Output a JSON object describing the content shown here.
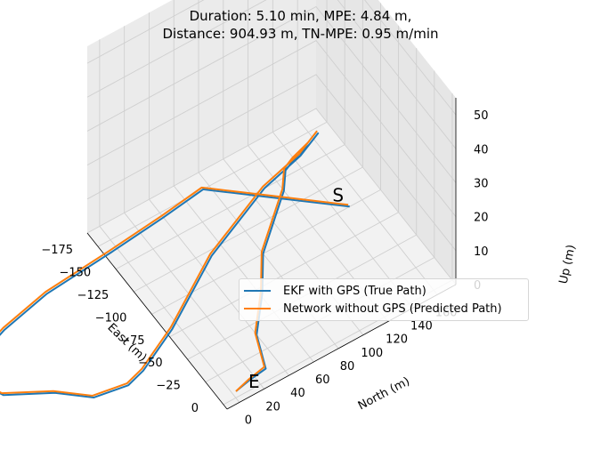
{
  "chart_data": {
    "type": "line",
    "projection": "3d",
    "title": "Duration: 5.10 min, MPE: 4.84 m,",
    "subtitle": "Distance: 904.93 m, TN-MPE: 0.95 m/min",
    "xlabel": "East (m)",
    "ylabel": "North (m)",
    "zlabel": "Up (m)",
    "x_ticks": [
      "−175",
      "−150",
      "−125",
      "−100",
      "−75",
      "−50",
      "−25",
      "0"
    ],
    "y_ticks": [
      "0",
      "20",
      "40",
      "60",
      "80",
      "100",
      "120",
      "140",
      "160"
    ],
    "z_ticks": [
      "0",
      "10",
      "20",
      "30",
      "40",
      "50"
    ],
    "xlim": [
      -190,
      5
    ],
    "ylim": [
      -10,
      175
    ],
    "zlim": [
      0,
      55
    ],
    "grid": true,
    "legend_position": "lower-right",
    "start_label": "S",
    "end_label": "E",
    "series": [
      {
        "name": "EKF with GPS (True Path)",
        "color": "#1f77b4",
        "path": [
          [
            -5,
            3,
            0
          ],
          [
            -8,
            16,
            0
          ],
          [
            -10,
            30,
            0
          ],
          [
            -40,
            40,
            0
          ],
          [
            -70,
            62,
            0
          ],
          [
            -100,
            80,
            0
          ],
          [
            -120,
            100,
            0
          ],
          [
            -140,
            120,
            0
          ],
          [
            -155,
            130,
            0
          ],
          [
            -160,
            140,
            0
          ],
          [
            -165,
            155,
            0
          ],
          [
            -170,
            165,
            0
          ],
          [
            -160,
            145,
            0
          ],
          [
            -150,
            110,
            0
          ],
          [
            -120,
            50,
            0
          ],
          [
            -80,
            -5,
            0
          ],
          [
            -60,
            -40,
            0
          ],
          [
            -55,
            -55,
            0
          ],
          [
            -60,
            -80,
            0
          ],
          [
            -70,
            -90,
            0
          ],
          [
            -80,
            -100,
            0
          ],
          [
            -100,
            -130,
            0
          ],
          [
            -125,
            -140,
            0
          ],
          [
            -140,
            -125,
            0
          ],
          [
            -150,
            -100,
            0
          ],
          [
            -160,
            -60,
            0
          ],
          [
            -165,
            -5,
            0
          ],
          [
            -170,
            40,
            0
          ],
          [
            -175,
            75,
            0
          ],
          [
            -170,
            80,
            0
          ],
          [
            -160,
            90,
            0
          ],
          [
            -140,
            110,
            0
          ],
          [
            -120,
            130,
            0
          ],
          [
            -100,
            150,
            0
          ]
        ]
      },
      {
        "name": "Network without GPS (Predicted Path)",
        "color": "#ff7f0e",
        "path": [
          [
            -5,
            3,
            0
          ],
          [
            -9,
            16,
            0
          ],
          [
            -12,
            30,
            0
          ],
          [
            -42,
            40,
            0
          ],
          [
            -72,
            62,
            0
          ],
          [
            -102,
            80,
            0
          ],
          [
            -122,
            100,
            0
          ],
          [
            -142,
            120,
            0
          ],
          [
            -157,
            130,
            0
          ],
          [
            -162,
            140,
            0
          ],
          [
            -167,
            155,
            0
          ],
          [
            -172,
            165,
            0
          ],
          [
            -162,
            145,
            0
          ],
          [
            -152,
            110,
            0
          ],
          [
            -122,
            50,
            0
          ],
          [
            -82,
            -5,
            0
          ],
          [
            -62,
            -40,
            0
          ],
          [
            -57,
            -55,
            0
          ],
          [
            -62,
            -80,
            0
          ],
          [
            -72,
            -90,
            0
          ],
          [
            -82,
            -100,
            0
          ],
          [
            -102,
            -130,
            0
          ],
          [
            -127,
            -140,
            0
          ],
          [
            -142,
            -125,
            0
          ],
          [
            -152,
            -100,
            0
          ],
          [
            -162,
            -60,
            0
          ],
          [
            -167,
            -5,
            0
          ],
          [
            -172,
            40,
            0
          ],
          [
            -177,
            75,
            0
          ],
          [
            -172,
            80,
            0
          ],
          [
            -162,
            90,
            0
          ],
          [
            -142,
            110,
            0
          ],
          [
            -122,
            130,
            0
          ],
          [
            -102,
            150,
            0
          ]
        ]
      }
    ]
  }
}
